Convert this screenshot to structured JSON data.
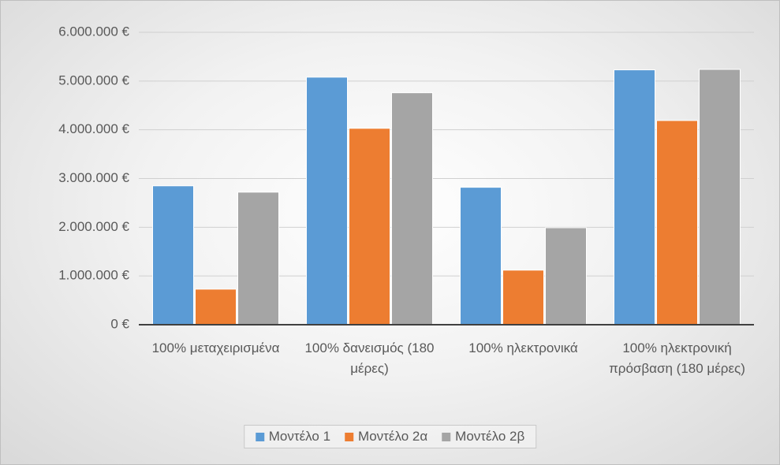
{
  "chart_data": {
    "type": "bar",
    "categories": [
      "100% μεταχειρισμένα",
      "100% δανεισμός (180 μέρες)",
      "100% ηλεκτρονικά",
      "100% ηλεκτρονική πρόσβαση (180 μέρες)"
    ],
    "series": [
      {
        "name": "Μοντέλο 1",
        "color": "#5b9bd5",
        "values": [
          2850000,
          5080000,
          2820000,
          5230000
        ]
      },
      {
        "name": "Μοντέλο 2α",
        "color": "#ed7d31",
        "values": [
          730000,
          4030000,
          1120000,
          4190000
        ]
      },
      {
        "name": "Μοντέλο 2β",
        "color": "#a5a5a5",
        "values": [
          2720000,
          4760000,
          1990000,
          5240000
        ]
      }
    ],
    "ylim": [
      0,
      6000000
    ],
    "yticks": [
      {
        "value": 0,
        "label": "0 €"
      },
      {
        "value": 1000000,
        "label": "1.000.000 €"
      },
      {
        "value": 2000000,
        "label": "2.000.000 €"
      },
      {
        "value": 3000000,
        "label": "3.000.000 €"
      },
      {
        "value": 4000000,
        "label": "4.000.000 €"
      },
      {
        "value": 5000000,
        "label": "5.000.000 €"
      },
      {
        "value": 6000000,
        "label": "6.000.000 €"
      }
    ],
    "grid": true,
    "legend": "bottom"
  }
}
